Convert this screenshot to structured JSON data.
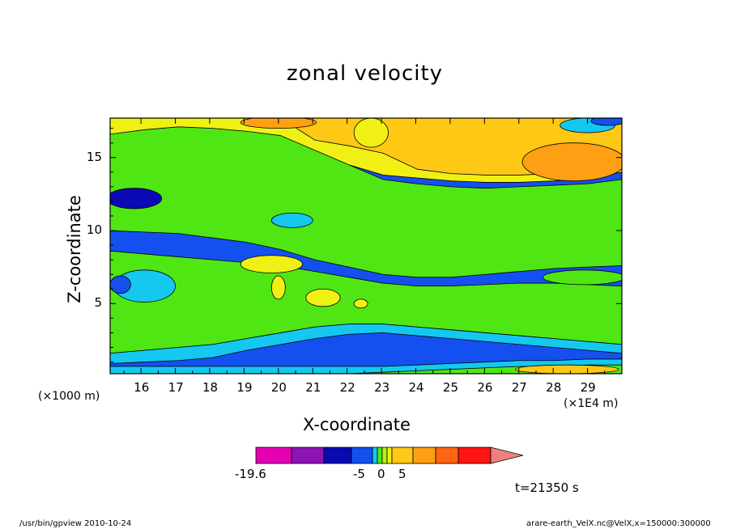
{
  "chart_data": {
    "type": "heatmap",
    "title": "zonal velocity",
    "xlabel": "X-coordinate",
    "ylabel": "Z-coordinate",
    "x_unit_left": "(×1000 m)",
    "x_unit_right": "(×1E4 m)",
    "xlim": [
      15.1,
      30.0
    ],
    "ylim": [
      0.2,
      17.7
    ],
    "x_ticks": [
      "16",
      "17",
      "18",
      "19",
      "20",
      "21",
      "22",
      "23",
      "24",
      "25",
      "26",
      "27",
      "28",
      "29"
    ],
    "y_ticks": [
      "5",
      "10",
      "15"
    ],
    "colorbar": {
      "colors": [
        "#e600b4",
        "#8c14b4",
        "#0a0ab4",
        "#1450f0",
        "#14c8f0",
        "#50e614",
        "#b4f014",
        "#f0f014",
        "#ffc814",
        "#ffa014",
        "#ff6414",
        "#ff1414",
        "#f08080"
      ],
      "labels": [
        "-19.6",
        "-5",
        "0",
        "5"
      ]
    },
    "time_label": "t=21350 s",
    "bands": [
      {
        "level": "blue",
        "color": "#1450f0",
        "top": [
          17.7,
          17.7,
          17.7,
          17.7,
          17.7,
          17.7,
          17.7,
          17.7,
          17.7,
          17.7,
          17.7,
          17.7,
          17.7,
          17.7,
          17.7,
          17.7
        ],
        "bottom": [
          0.2,
          0.2,
          0.2,
          0.2,
          0.2,
          0.2,
          0.2,
          0.2,
          0.2,
          0.2,
          0.2,
          0.2,
          0.2,
          0.2,
          0.2,
          0.2
        ]
      },
      {
        "level": "cyan",
        "color": "#14c8f0",
        "top": [
          16.0,
          16.2,
          16.3,
          16.2,
          16.0,
          15.8,
          15.0,
          13.5,
          13.0,
          12.8,
          12.7,
          12.6,
          12.6,
          12.6,
          12.6,
          12.8
        ],
        "bottom": [
          10.6,
          10.6,
          10.5,
          10.3,
          10.0,
          9.6,
          9.0,
          8.6,
          8.5,
          8.6,
          8.8,
          9.0,
          9.2,
          9.3,
          9.4,
          9.5
        ]
      },
      {
        "level": "green",
        "color": "#50e614",
        "top": [
          16.8,
          17.0,
          17.2,
          17.0,
          16.8,
          16.6,
          16.2,
          14.5,
          13.5,
          13.2,
          13.0,
          12.9,
          13.0,
          13.1,
          13.2,
          13.5
        ],
        "bottom": [
          10.0,
          9.9,
          9.8,
          9.5,
          9.2,
          8.7,
          8.0,
          7.5,
          7.0,
          6.8,
          6.8,
          7.0,
          7.2,
          7.4,
          7.5,
          7.6
        ]
      },
      {
        "level": "yellow",
        "color": "#f0f014",
        "top": [
          17.7,
          17.7,
          17.7,
          17.7,
          17.7,
          17.7,
          17.7,
          17.7,
          17.7,
          17.7,
          17.7,
          17.7,
          17.7,
          17.7,
          17.7,
          17.7
        ],
        "bottom": [
          16.6,
          16.9,
          17.1,
          17.0,
          16.8,
          16.5,
          15.5,
          14.5,
          13.8,
          13.6,
          13.4,
          13.3,
          13.3,
          13.4,
          13.6,
          14.0
        ]
      },
      {
        "level": "orange",
        "color": "#ffc814",
        "top": [
          17.7,
          17.7,
          17.7,
          17.7,
          17.7,
          17.7,
          17.7,
          17.7,
          17.7,
          17.7,
          17.7,
          17.7,
          17.7,
          17.7,
          17.7,
          17.7
        ],
        "bottom": [
          17.7,
          17.7,
          17.7,
          17.7,
          17.7,
          17.7,
          16.2,
          15.8,
          15.3,
          14.2,
          13.9,
          13.8,
          13.8,
          13.9,
          14.2,
          14.8
        ]
      },
      {
        "level": "green-lower",
        "color": "#50e614",
        "top": [
          8.6,
          8.4,
          8.2,
          8.0,
          7.8,
          7.6,
          7.2,
          6.8,
          6.4,
          6.2,
          6.2,
          6.3,
          6.4,
          6.4,
          6.3,
          6.2
        ],
        "bottom": [
          1.6,
          1.8,
          2.0,
          2.2,
          2.6,
          3.0,
          3.4,
          3.6,
          3.6,
          3.4,
          3.2,
          3.0,
          2.8,
          2.6,
          2.4,
          2.2
        ]
      },
      {
        "level": "cyan-lower",
        "color": "#14c8f0",
        "top": [
          1.6,
          1.8,
          2.0,
          2.2,
          2.6,
          3.0,
          3.4,
          3.6,
          3.6,
          3.4,
          3.2,
          3.0,
          2.8,
          2.6,
          2.4,
          2.2
        ],
        "bottom": [
          0.9,
          1.0,
          1.1,
          1.3,
          1.8,
          2.2,
          2.6,
          2.9,
          3.0,
          2.8,
          2.6,
          2.4,
          2.2,
          2.0,
          1.8,
          1.6
        ]
      },
      {
        "level": "cyan-bottom",
        "color": "#14c8f0",
        "top": [
          0.7,
          0.7,
          0.7,
          0.7,
          0.7,
          0.7,
          0.7,
          0.7,
          0.7,
          0.8,
          0.9,
          1.0,
          1.1,
          1.1,
          1.2,
          1.2
        ],
        "bottom": [
          0.2,
          0.2,
          0.2,
          0.2,
          0.2,
          0.2,
          0.2,
          0.2,
          0.2,
          0.2,
          0.2,
          0.2,
          0.2,
          0.2,
          0.2,
          0.2
        ]
      },
      {
        "level": "green-bottom",
        "color": "#50e614",
        "top": [
          0.2,
          0.2,
          0.2,
          0.2,
          0.2,
          0.2,
          0.2,
          0.2,
          0.3,
          0.4,
          0.5,
          0.6,
          0.7,
          0.7,
          0.8,
          0.8
        ],
        "bottom": [
          0.2,
          0.2,
          0.2,
          0.2,
          0.2,
          0.2,
          0.2,
          0.2,
          0.2,
          0.2,
          0.2,
          0.2,
          0.2,
          0.2,
          0.2,
          0.2
        ]
      }
    ],
    "blobs": [
      {
        "level": "dark-blue",
        "color": "#0a0ab4",
        "cx": 15.8,
        "cy": 12.2,
        "rx": 0.8,
        "ry": 0.7
      },
      {
        "level": "cyan",
        "color": "#14c8f0",
        "cx": 20.4,
        "cy": 10.7,
        "rx": 0.6,
        "ry": 0.5
      },
      {
        "level": "cyan",
        "color": "#14c8f0",
        "cx": 16.1,
        "cy": 6.2,
        "rx": 0.9,
        "ry": 1.1
      },
      {
        "level": "blue",
        "color": "#1450f0",
        "cx": 15.4,
        "cy": 6.3,
        "rx": 0.3,
        "ry": 0.6
      },
      {
        "level": "yellow",
        "color": "#f0f014",
        "cx": 19.8,
        "cy": 7.7,
        "rx": 0.9,
        "ry": 0.6
      },
      {
        "level": "yellow",
        "color": "#f0f014",
        "cx": 20.0,
        "cy": 6.1,
        "rx": 0.2,
        "ry": 0.8
      },
      {
        "level": "yellow",
        "color": "#f0f014",
        "cx": 21.3,
        "cy": 5.4,
        "rx": 0.5,
        "ry": 0.6
      },
      {
        "level": "yellow",
        "color": "#f0f014",
        "cx": 22.4,
        "cy": 5.0,
        "rx": 0.2,
        "ry": 0.3
      },
      {
        "level": "dark-orange",
        "color": "#ffa014",
        "cx": 28.6,
        "cy": 14.7,
        "rx": 1.5,
        "ry": 1.3
      },
      {
        "level": "dark-orange",
        "color": "#ffa014",
        "cx": 20.0,
        "cy": 17.4,
        "rx": 1.1,
        "ry": 0.4
      },
      {
        "level": "yellow",
        "color": "#f0f014",
        "cx": 22.7,
        "cy": 16.7,
        "rx": 0.5,
        "ry": 1.0
      },
      {
        "level": "cyan",
        "color": "#14c8f0",
        "cx": 29.0,
        "cy": 17.2,
        "rx": 0.8,
        "ry": 0.5
      },
      {
        "level": "blue",
        "color": "#1450f0",
        "cx": 29.6,
        "cy": 17.5,
        "rx": 0.5,
        "ry": 0.3
      },
      {
        "level": "green",
        "color": "#50e614",
        "cx": 28.9,
        "cy": 6.8,
        "rx": 1.2,
        "ry": 0.5
      },
      {
        "level": "orange",
        "color": "#ffc814",
        "cx": 28.4,
        "cy": 0.5,
        "rx": 1.5,
        "ry": 0.3
      }
    ]
  },
  "footer": {
    "left": "/usr/bin/gpview   2010-10-24",
    "right": "arare-earth_VelX.nc@VelX,x=150000:300000"
  }
}
